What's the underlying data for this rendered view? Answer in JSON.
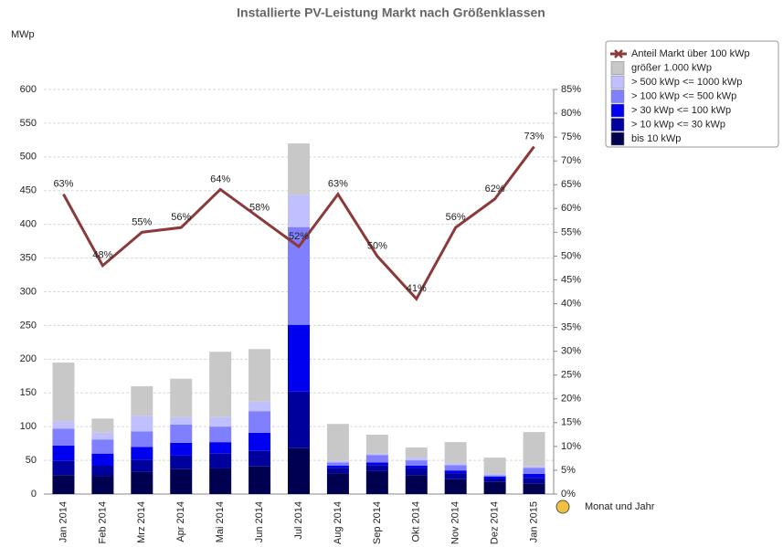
{
  "chart_data": {
    "type": "bar",
    "stacked": true,
    "title": "Installierte PV-Leistung Markt nach Größenklassen",
    "y_label": "MWp",
    "x_label": "Monat und Jahr",
    "categories": [
      "Jan 2014",
      "Feb 2014",
      "Mrz 2014",
      "Apr 2014",
      "Mai 2014",
      "Jun 2014",
      "Jul 2014",
      "Aug 2014",
      "Sep 2014",
      "Okt 2014",
      "Nov 2014",
      "Dez 2014",
      "Jan 2015"
    ],
    "series": [
      {
        "name": "bis 10 kWp",
        "color": "#000050",
        "values": [
          28,
          27,
          33,
          37,
          38,
          41,
          68,
          31,
          34,
          28,
          22,
          18,
          16
        ]
      },
      {
        "name": "> 10 kWp <= 30 kWp",
        "color": "#00009c",
        "values": [
          21,
          15,
          18,
          20,
          22,
          23,
          84,
          8,
          9,
          10,
          9,
          5,
          8
        ]
      },
      {
        "name": "> 30 kWp <= 100 kWp",
        "color": "#0000f0",
        "values": [
          23,
          18,
          19,
          19,
          17,
          27,
          99,
          3,
          4,
          4,
          4,
          3,
          6
        ]
      },
      {
        "name": "> 100 kWp <= 500 kWp",
        "color": "#8080ff",
        "values": [
          25,
          21,
          23,
          27,
          23,
          32,
          145,
          5,
          11,
          8,
          8,
          2,
          9
        ]
      },
      {
        "name": "> 500 kWp <= 1000 kWp",
        "color": "#c0c0ff",
        "values": [
          11,
          10,
          23,
          11,
          14,
          14,
          48,
          2,
          2,
          4,
          3,
          2,
          2
        ]
      },
      {
        "name": "größer 1.000 kWp",
        "color": "#c8c8c8",
        "values": [
          87,
          21,
          44,
          57,
          97,
          78,
          76,
          55,
          28,
          15,
          31,
          24,
          51
        ]
      },
      {
        "name": "Anteil Markt über 100 kWp",
        "type": "line",
        "axis": "y2",
        "color": "#8b3a3a",
        "values": [
          63,
          48,
          55,
          56,
          64,
          58,
          52,
          63,
          50,
          41,
          56,
          62,
          73
        ],
        "value_labels": [
          "63%",
          "48%",
          "55%",
          "56%",
          "64%",
          "58%",
          "52%",
          "63%",
          "50%",
          "41%",
          "56%",
          "62%",
          "73%"
        ]
      }
    ],
    "ylim": [
      0,
      600
    ],
    "yticks": [
      0,
      50,
      100,
      150,
      200,
      250,
      300,
      350,
      400,
      450,
      500,
      550,
      600
    ],
    "y2lim": [
      0,
      85
    ],
    "y2ticks": [
      {
        "value": 0,
        "label": "0%"
      },
      {
        "value": 5,
        "label": "5%"
      },
      {
        "value": 10,
        "label": "10%"
      },
      {
        "value": 15,
        "label": "15%"
      },
      {
        "value": 20,
        "label": "20%"
      },
      {
        "value": 25,
        "label": "25%"
      },
      {
        "value": 30,
        "label": "30%"
      },
      {
        "value": 35,
        "label": "35%"
      },
      {
        "value": 40,
        "label": "40%"
      },
      {
        "value": 45,
        "label": "45%"
      },
      {
        "value": 50,
        "label": "50%"
      },
      {
        "value": 55,
        "label": "55%"
      },
      {
        "value": 60,
        "label": "60%"
      },
      {
        "value": 65,
        "label": "65%"
      },
      {
        "value": 70,
        "label": "70%"
      },
      {
        "value": 75,
        "label": "75%"
      },
      {
        "value": 80,
        "label": "80%"
      },
      {
        "value": 85,
        "label": "85%"
      }
    ],
    "grid": true,
    "legend": "top-right"
  }
}
